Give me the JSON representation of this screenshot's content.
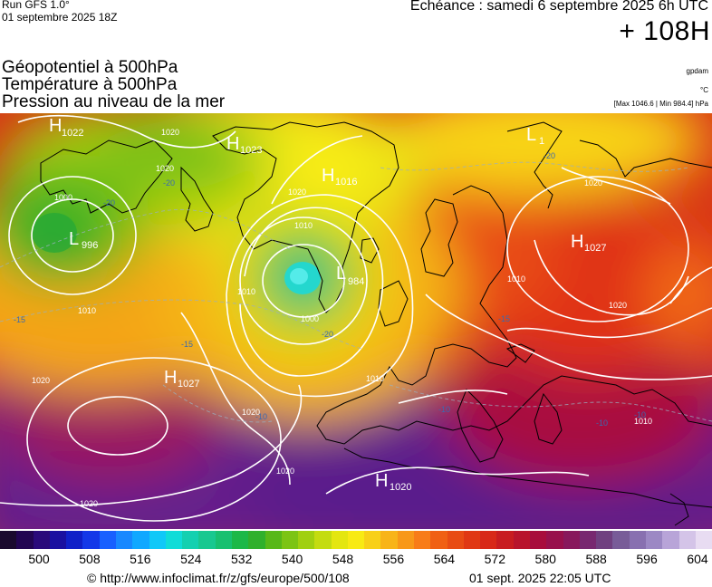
{
  "header": {
    "run_model": "Run GFS 1.0°",
    "run_date": "01 septembre 2025 18Z",
    "valid_time": "Echéance : samedi 6 septembre 2025 6h UTC",
    "lead_time": "+ 108H"
  },
  "variables": [
    "Géopotentiel à 500hPa",
    "Température à 500hPa",
    "Pression au niveau de la mer"
  ],
  "units": {
    "geopotential": "gpdam",
    "temperature": "°C",
    "pressure": "[Max 1046.6 | Min 984.4] hPa"
  },
  "pressure_centers": [
    {
      "type": "H",
      "value": "1022"
    },
    {
      "type": "H",
      "value": "1023"
    },
    {
      "type": "H",
      "value": "1016"
    },
    {
      "type": "L",
      "value": "996"
    },
    {
      "type": "L",
      "value": "984"
    },
    {
      "type": "L",
      "value": "1"
    },
    {
      "type": "H",
      "value": "1027"
    },
    {
      "type": "H",
      "value": "1027"
    },
    {
      "type": "H",
      "value": "1020"
    }
  ],
  "isobar_labels": [
    "1020",
    "1000",
    "1010",
    "1020",
    "1010",
    "1000",
    "1010",
    "1020",
    "1020",
    "1010",
    "1020",
    "1020",
    "1020",
    "1010",
    "1020",
    "1020",
    "1010"
  ],
  "temperature_labels": [
    "-20",
    "-20",
    "-20",
    "-20",
    "-15",
    "-15",
    "-10",
    "-10",
    "-10",
    "-10",
    "-15"
  ],
  "color_scale": {
    "labels": [
      "500",
      "508",
      "516",
      "524",
      "532",
      "540",
      "548",
      "556",
      "564",
      "572",
      "580",
      "588",
      "596",
      "604"
    ],
    "colors": [
      "#1a0a2e",
      "#220552",
      "#2a0a7a",
      "#1a10a0",
      "#1020c8",
      "#1438e8",
      "#1860ff",
      "#1888ff",
      "#10a8ff",
      "#10c8f8",
      "#10dcd8",
      "#14d0b0",
      "#18c890",
      "#18c070",
      "#1cb848",
      "#30b02c",
      "#58b818",
      "#7cc414",
      "#a0d010",
      "#c4dc10",
      "#e4e610",
      "#f8ea14",
      "#f8d018",
      "#f8b418",
      "#f89818",
      "#f87c18",
      "#f06014",
      "#e84c14",
      "#e03814",
      "#d82818",
      "#c81c20",
      "#b8142c",
      "#a80c3c",
      "#98104c",
      "#88185c",
      "#782870",
      "#704080",
      "#785c98",
      "#8870b0",
      "#9c88c4",
      "#b8a4d8",
      "#d4c4e8",
      "#e8dcf2"
    ]
  },
  "footer": {
    "credit": "© http://www.infoclimat.fr/z/gfs/europe/500/108",
    "issued": "01 sept. 2025 22:05 UTC"
  }
}
